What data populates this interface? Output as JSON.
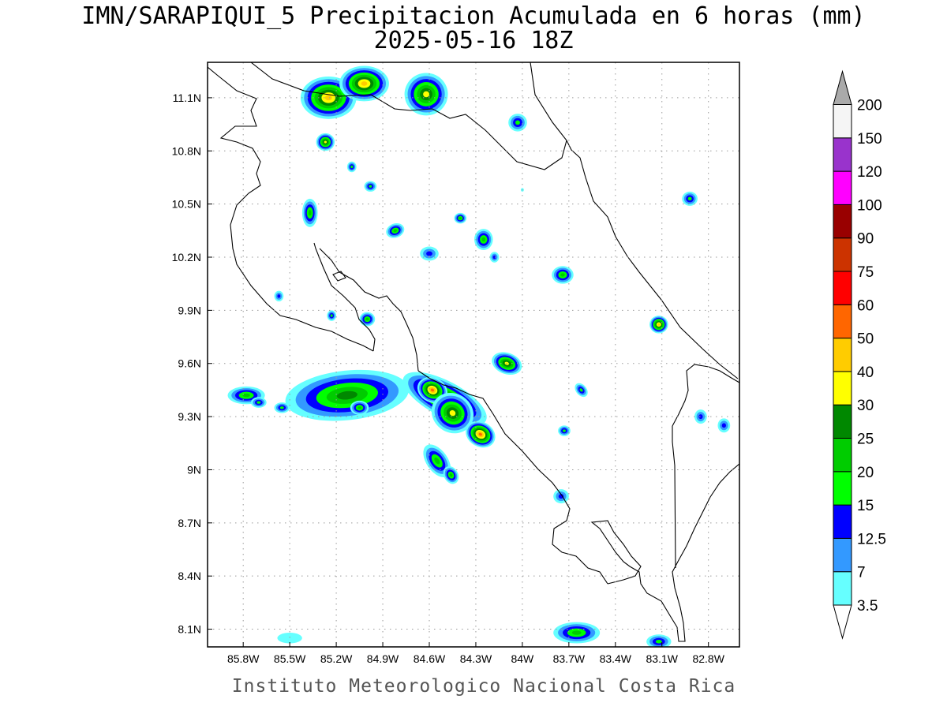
{
  "title": {
    "line1": "IMN/SARAPIQUI_5 Precipitacion Acumulada en 6 horas (mm)",
    "line2": "2025-05-16 18Z"
  },
  "footer": "Instituto Meteorologico Nacional Costa Rica",
  "map": {
    "lon_range": [
      -86.03,
      -82.6
    ],
    "lat_range": [
      8.0,
      11.3
    ],
    "lon_ticks": [
      {
        "value": -85.8,
        "label": "85.8W"
      },
      {
        "value": -85.5,
        "label": "85.5W"
      },
      {
        "value": -85.2,
        "label": "85.2W"
      },
      {
        "value": -84.9,
        "label": "84.9W"
      },
      {
        "value": -84.6,
        "label": "84.6W"
      },
      {
        "value": -84.3,
        "label": "84.3W"
      },
      {
        "value": -84.0,
        "label": "84W"
      },
      {
        "value": -83.7,
        "label": "83.7W"
      },
      {
        "value": -83.4,
        "label": "83.4W"
      },
      {
        "value": -83.1,
        "label": "83.1W"
      },
      {
        "value": -82.8,
        "label": "82.8W"
      }
    ],
    "lat_ticks": [
      {
        "value": 11.1,
        "label": "11.1N"
      },
      {
        "value": 10.8,
        "label": "10.8N"
      },
      {
        "value": 10.5,
        "label": "10.5N"
      },
      {
        "value": 10.2,
        "label": "10.2N"
      },
      {
        "value": 9.9,
        "label": "9.9N"
      },
      {
        "value": 9.6,
        "label": "9.6N"
      },
      {
        "value": 9.3,
        "label": "9.3N"
      },
      {
        "value": 9.0,
        "label": "9N"
      },
      {
        "value": 8.7,
        "label": "8.7N"
      },
      {
        "value": 8.4,
        "label": "8.4N"
      },
      {
        "value": 8.1,
        "label": "8.1N"
      }
    ],
    "grid": true
  },
  "colorbar": {
    "levels": [
      "3.5",
      "7",
      "12.5",
      "15",
      "20",
      "25",
      "30",
      "40",
      "50",
      "60",
      "75",
      "90",
      "100",
      "120",
      "150",
      "200"
    ],
    "colors": [
      "#66ffff",
      "#3399ff",
      "#0000ff",
      "#00ff00",
      "#00cc00",
      "#008800",
      "#ffff00",
      "#ffcc00",
      "#ff6600",
      "#ff0000",
      "#cc3300",
      "#990000",
      "#ff00ff",
      "#9933cc",
      "#f5f5f5",
      "#aaaaaa"
    ]
  },
  "precip_cells": [
    {
      "lon": -85.13,
      "lat": 9.42,
      "rx": 0.4,
      "ry": 0.14,
      "rot": -6,
      "peak": 6
    },
    {
      "lon": -84.5,
      "lat": 9.4,
      "rx": 0.3,
      "ry": 0.1,
      "rot": 28,
      "peak": 8
    },
    {
      "lon": -84.58,
      "lat": 9.45,
      "rx": 0.1,
      "ry": 0.07,
      "rot": 25,
      "peak": 9
    },
    {
      "lon": -84.45,
      "lat": 9.32,
      "rx": 0.14,
      "ry": 0.11,
      "rot": 35,
      "peak": 7
    },
    {
      "lon": -84.27,
      "lat": 9.2,
      "rx": 0.1,
      "ry": 0.07,
      "rot": 30,
      "peak": 9
    },
    {
      "lon": -84.55,
      "lat": 9.05,
      "rx": 0.12,
      "ry": 0.06,
      "rot": 55,
      "peak": 5
    },
    {
      "lon": -84.46,
      "lat": 8.97,
      "rx": 0.06,
      "ry": 0.04,
      "rot": 60,
      "peak": 5
    },
    {
      "lon": -84.1,
      "lat": 9.6,
      "rx": 0.1,
      "ry": 0.06,
      "rot": 20,
      "peak": 7
    },
    {
      "lon": -85.78,
      "lat": 9.42,
      "rx": 0.12,
      "ry": 0.05,
      "rot": 0,
      "peak": 5
    },
    {
      "lon": -85.55,
      "lat": 9.35,
      "rx": 0.05,
      "ry": 0.03,
      "rot": 0,
      "peak": 4
    },
    {
      "lon": -85.7,
      "lat": 9.38,
      "rx": 0.05,
      "ry": 0.03,
      "rot": 0,
      "peak": 4
    },
    {
      "lon": -85.05,
      "lat": 9.35,
      "rx": 0.06,
      "ry": 0.04,
      "rot": 0,
      "peak": 5
    },
    {
      "lon": -85.25,
      "lat": 11.1,
      "rx": 0.18,
      "ry": 0.12,
      "rot": 0,
      "peak": 8
    },
    {
      "lon": -85.02,
      "lat": 11.18,
      "rx": 0.16,
      "ry": 0.1,
      "rot": 0,
      "peak": 8
    },
    {
      "lon": -84.62,
      "lat": 11.12,
      "rx": 0.14,
      "ry": 0.12,
      "rot": 0,
      "peak": 7
    },
    {
      "lon": -85.27,
      "lat": 10.85,
      "rx": 0.06,
      "ry": 0.05,
      "rot": 0,
      "peak": 7
    },
    {
      "lon": -85.37,
      "lat": 10.45,
      "rx": 0.05,
      "ry": 0.08,
      "rot": 0,
      "peak": 5
    },
    {
      "lon": -84.4,
      "lat": 10.42,
      "rx": 0.04,
      "ry": 0.03,
      "rot": 0,
      "peak": 5
    },
    {
      "lon": -84.82,
      "lat": 10.35,
      "rx": 0.06,
      "ry": 0.04,
      "rot": -20,
      "peak": 5
    },
    {
      "lon": -84.25,
      "lat": 10.3,
      "rx": 0.06,
      "ry": 0.06,
      "rot": 0,
      "peak": 5
    },
    {
      "lon": -83.74,
      "lat": 10.1,
      "rx": 0.07,
      "ry": 0.05,
      "rot": 0,
      "peak": 5
    },
    {
      "lon": -83.12,
      "lat": 9.82,
      "rx": 0.06,
      "ry": 0.05,
      "rot": 0,
      "peak": 8
    },
    {
      "lon": -83.73,
      "lat": 9.22,
      "rx": 0.04,
      "ry": 0.03,
      "rot": 0,
      "peak": 4
    },
    {
      "lon": -83.62,
      "lat": 9.45,
      "rx": 0.05,
      "ry": 0.03,
      "rot": 50,
      "peak": 4
    },
    {
      "lon": -85.0,
      "lat": 9.85,
      "rx": 0.05,
      "ry": 0.04,
      "rot": 0,
      "peak": 5
    },
    {
      "lon": -85.23,
      "lat": 9.87,
      "rx": 0.03,
      "ry": 0.03,
      "rot": 0,
      "peak": 4
    },
    {
      "lon": -85.57,
      "lat": 9.98,
      "rx": 0.03,
      "ry": 0.03,
      "rot": 0,
      "peak": 3
    },
    {
      "lon": -84.03,
      "lat": 10.96,
      "rx": 0.06,
      "ry": 0.05,
      "rot": 0,
      "peak": 4
    },
    {
      "lon": -84.0,
      "lat": 10.58,
      "rx": 0.01,
      "ry": 0.01,
      "rot": 0,
      "peak": 1
    },
    {
      "lon": -82.92,
      "lat": 10.53,
      "rx": 0.05,
      "ry": 0.04,
      "rot": 0,
      "peak": 4
    },
    {
      "lon": -85.1,
      "lat": 10.71,
      "rx": 0.03,
      "ry": 0.03,
      "rot": 0,
      "peak": 4
    },
    {
      "lon": -84.98,
      "lat": 10.6,
      "rx": 0.04,
      "ry": 0.03,
      "rot": 0,
      "peak": 4
    },
    {
      "lon": -84.6,
      "lat": 10.22,
      "rx": 0.06,
      "ry": 0.04,
      "rot": 0,
      "peak": 3
    },
    {
      "lon": -84.18,
      "lat": 10.2,
      "rx": 0.03,
      "ry": 0.03,
      "rot": 0,
      "peak": 3
    },
    {
      "lon": -83.75,
      "lat": 8.85,
      "rx": 0.05,
      "ry": 0.04,
      "rot": 0,
      "peak": 3
    },
    {
      "lon": -82.85,
      "lat": 9.3,
      "rx": 0.04,
      "ry": 0.04,
      "rot": 0,
      "peak": 3
    },
    {
      "lon": -82.7,
      "lat": 9.25,
      "rx": 0.04,
      "ry": 0.04,
      "rot": 0,
      "peak": 3
    },
    {
      "lon": -83.65,
      "lat": 8.08,
      "rx": 0.15,
      "ry": 0.06,
      "rot": 0,
      "peak": 5
    },
    {
      "lon": -83.12,
      "lat": 8.03,
      "rx": 0.08,
      "ry": 0.04,
      "rot": 0,
      "peak": 4
    },
    {
      "lon": -85.5,
      "lat": 8.05,
      "rx": 0.08,
      "ry": 0.03,
      "rot": 0,
      "peak": 1
    }
  ]
}
